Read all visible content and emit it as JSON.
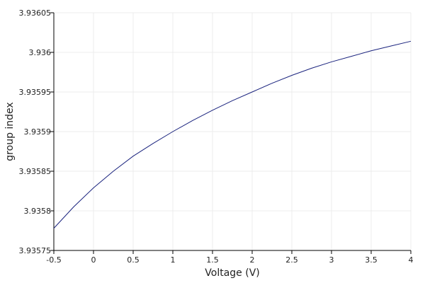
{
  "chart_data": {
    "type": "line",
    "title": "",
    "xlabel": "Voltage (V)",
    "ylabel": "group index",
    "xlim": [
      -0.5,
      4
    ],
    "ylim": [
      3.93575,
      3.93605
    ],
    "grid": true,
    "xticks": [
      -0.5,
      0,
      0.5,
      1,
      1.5,
      2,
      2.5,
      3,
      3.5,
      4
    ],
    "xtick_labels": [
      "-0.5",
      "0",
      "0.5",
      "1",
      "1.5",
      "2",
      "2.5",
      "3",
      "3.5",
      "4"
    ],
    "yticks": [
      3.93575,
      3.9358,
      3.93585,
      3.9359,
      3.93595,
      3.936,
      3.93605
    ],
    "ytick_labels": [
      "3.93575",
      "3.9358",
      "3.93585",
      "3.9359",
      "3.93595",
      "3.936",
      "3.93605"
    ],
    "series": [
      {
        "color": "#1a237e",
        "x": [
          -0.5,
          -0.25,
          0,
          0.25,
          0.5,
          0.75,
          1,
          1.25,
          1.5,
          1.75,
          2,
          2.25,
          2.5,
          2.75,
          3,
          3.25,
          3.5,
          3.75,
          4
        ],
        "y": [
          3.935778,
          3.935805,
          3.935829,
          3.93585,
          3.935869,
          3.935885,
          3.9359,
          3.935914,
          3.935927,
          3.935939,
          3.93595,
          3.935961,
          3.935971,
          3.93598,
          3.935988,
          3.935995,
          3.936002,
          3.936008,
          3.936014
        ]
      }
    ]
  }
}
